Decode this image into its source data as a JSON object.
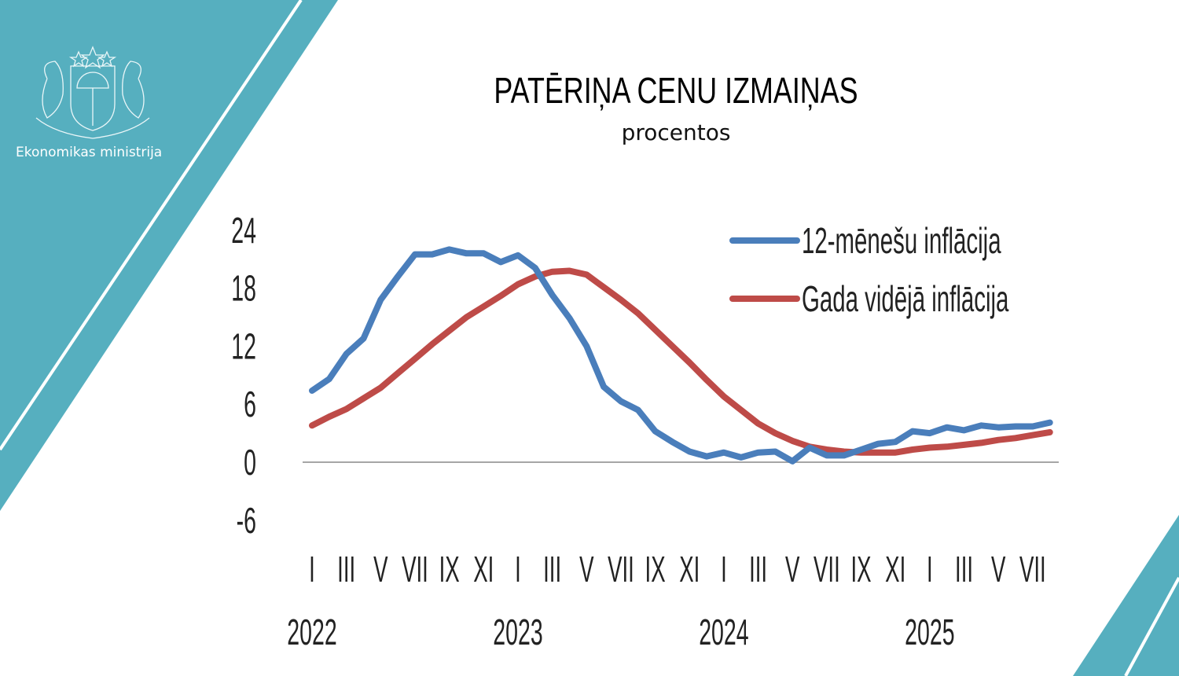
{
  "brand": {
    "name": "Ekonomikas ministrija",
    "color": "#56afbf"
  },
  "chart_data": {
    "type": "line",
    "title": "PATĒRIŅA CENU IZMAIŅAS",
    "subtitle": "procentos",
    "ylim": [
      -6,
      24
    ],
    "yticks": [
      "24",
      "18",
      "12",
      "6",
      "0",
      "-6"
    ],
    "ytick_values": [
      24,
      18,
      12,
      6,
      0,
      -6
    ],
    "month_labels": [
      "I",
      "III",
      "V",
      "VII",
      "IX",
      "XI",
      "I",
      "III",
      "V",
      "VII",
      "IX",
      "XI",
      "I",
      "III",
      "V",
      "VII",
      "IX",
      "XI",
      "I",
      "III",
      "V",
      "VII"
    ],
    "month_label_index": [
      0,
      2,
      4,
      6,
      8,
      10,
      12,
      14,
      16,
      18,
      20,
      22,
      24,
      26,
      28,
      30,
      32,
      34,
      36,
      38,
      40,
      42
    ],
    "years": [
      "2022",
      "2023",
      "2024",
      "2025"
    ],
    "year_index": [
      0,
      12,
      24,
      36
    ],
    "legend_position": "top-right",
    "grid": false,
    "series": [
      {
        "name": "12-mēnešu inflācija",
        "color": "#4a7ebb",
        "values": [
          7.4,
          8.6,
          11.2,
          12.8,
          16.8,
          19.2,
          21.5,
          21.5,
          22.0,
          21.6,
          21.6,
          20.7,
          21.4,
          20.1,
          17.3,
          14.9,
          12.0,
          7.8,
          6.3,
          5.4,
          3.2,
          2.1,
          1.1,
          0.6,
          1.0,
          0.5,
          1.0,
          1.1,
          0.1,
          1.5,
          0.7,
          0.7,
          1.3,
          1.9,
          2.1,
          3.2,
          3.0,
          3.6,
          3.3,
          3.8,
          3.6,
          3.7,
          3.7,
          4.1
        ]
      },
      {
        "name": "Gada vidējā inflācija",
        "color": "#be4b48",
        "values": [
          3.8,
          4.7,
          5.5,
          6.6,
          7.7,
          9.2,
          10.7,
          12.2,
          13.6,
          15.0,
          16.1,
          17.2,
          18.4,
          19.2,
          19.7,
          19.8,
          19.4,
          18.1,
          16.8,
          15.4,
          13.7,
          12.0,
          10.3,
          8.5,
          6.8,
          5.4,
          4.0,
          3.0,
          2.2,
          1.6,
          1.3,
          1.1,
          1.0,
          1.0,
          1.0,
          1.3,
          1.5,
          1.6,
          1.8,
          2.0,
          2.3,
          2.5,
          2.8,
          3.1
        ]
      }
    ]
  }
}
